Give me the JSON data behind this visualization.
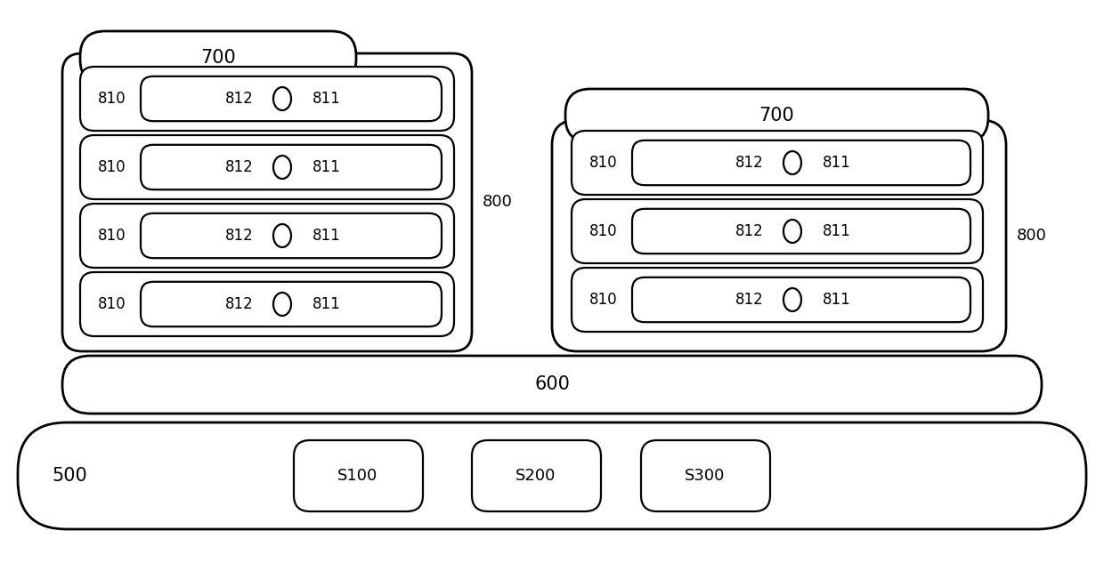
{
  "bg_color": "#ffffff",
  "border_color": "#000000",
  "text_color": "#000000",
  "fig_width": 12.4,
  "fig_height": 6.6,
  "dpi": 100,
  "label_500": "500",
  "label_600": "600",
  "label_700": "700",
  "label_800": "800",
  "label_810": "810",
  "label_811": "811",
  "label_812": "812",
  "label_s100": "S100",
  "label_s200": "S200",
  "label_s300": "S300",
  "lw": 2.0,
  "lw_thin": 1.6,
  "fontsize_large": 15,
  "fontsize_medium": 13,
  "fontsize_small": 12
}
